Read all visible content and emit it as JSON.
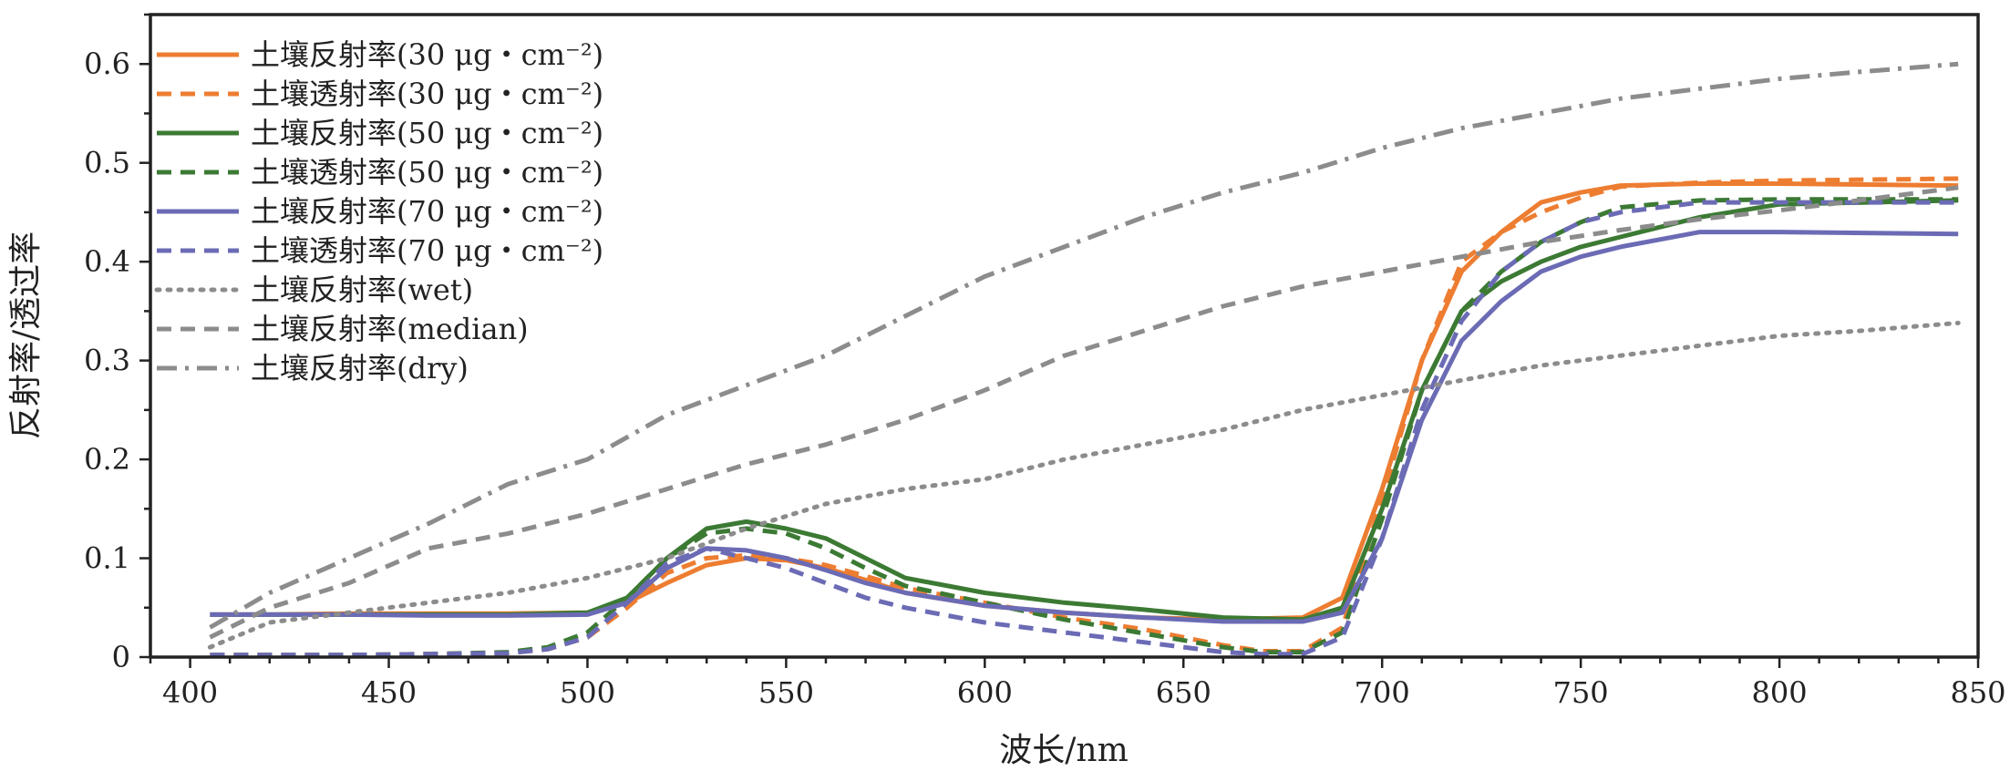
{
  "chart_data": {
    "type": "line",
    "xlabel": "波长/nm",
    "ylabel": "反射率/透过率",
    "xlim": [
      390,
      850
    ],
    "ylim": [
      0,
      0.65
    ],
    "x_ticks": [
      400,
      450,
      500,
      550,
      600,
      650,
      700,
      750,
      800,
      850
    ],
    "y_ticks": [
      0,
      0.1,
      0.2,
      0.3,
      0.4,
      0.5,
      0.6
    ],
    "x_tick_labels": [
      "400",
      "450",
      "500",
      "550",
      "600",
      "650",
      "700",
      "750",
      "800",
      "850"
    ],
    "y_tick_labels": [
      "0",
      "0.1",
      "0.2",
      "0.3",
      "0.4",
      "0.5",
      "0.6"
    ],
    "grid": false,
    "legend_position": "top-left",
    "series": [
      {
        "name": "土壤反射率(30 μg・cm⁻²)",
        "color": "#ED7D31",
        "style": "solid",
        "x": [
          405,
          420,
          440,
          460,
          480,
          500,
          510,
          520,
          530,
          540,
          550,
          560,
          570,
          580,
          600,
          620,
          640,
          660,
          680,
          690,
          700,
          710,
          720,
          730,
          740,
          750,
          760,
          780,
          800,
          845
        ],
        "y": [
          0.043,
          0.043,
          0.044,
          0.044,
          0.044,
          0.045,
          0.055,
          0.075,
          0.093,
          0.1,
          0.098,
          0.09,
          0.078,
          0.065,
          0.052,
          0.045,
          0.04,
          0.038,
          0.04,
          0.06,
          0.17,
          0.3,
          0.39,
          0.43,
          0.46,
          0.47,
          0.477,
          0.479,
          0.479,
          0.477
        ]
      },
      {
        "name": "土壤透射率(30 μg・cm⁻²)",
        "color": "#ED7D31",
        "style": "dashed",
        "x": [
          405,
          420,
          440,
          460,
          480,
          490,
          500,
          510,
          520,
          530,
          540,
          550,
          560,
          570,
          580,
          600,
          620,
          640,
          660,
          670,
          680,
          690,
          700,
          710,
          720,
          730,
          740,
          750,
          760,
          780,
          800,
          845
        ],
        "y": [
          0.002,
          0.002,
          0.002,
          0.003,
          0.004,
          0.008,
          0.02,
          0.05,
          0.085,
          0.1,
          0.103,
          0.1,
          0.093,
          0.082,
          0.07,
          0.055,
          0.04,
          0.028,
          0.012,
          0.006,
          0.006,
          0.03,
          0.16,
          0.3,
          0.4,
          0.43,
          0.45,
          0.465,
          0.476,
          0.48,
          0.482,
          0.484
        ]
      },
      {
        "name": "土壤反射率(50 μg・cm⁻²)",
        "color": "#3C7A34",
        "style": "solid",
        "x": [
          405,
          420,
          440,
          460,
          480,
          500,
          510,
          520,
          530,
          540,
          550,
          560,
          570,
          580,
          600,
          620,
          640,
          660,
          680,
          690,
          700,
          710,
          720,
          730,
          740,
          750,
          760,
          780,
          800,
          845
        ],
        "y": [
          0.043,
          0.043,
          0.043,
          0.043,
          0.043,
          0.045,
          0.06,
          0.1,
          0.13,
          0.137,
          0.13,
          0.12,
          0.1,
          0.08,
          0.065,
          0.055,
          0.048,
          0.04,
          0.038,
          0.05,
          0.15,
          0.27,
          0.35,
          0.38,
          0.4,
          0.415,
          0.425,
          0.445,
          0.458,
          0.462
        ]
      },
      {
        "name": "土壤透射率(50 μg・cm⁻²)",
        "color": "#3C7A34",
        "style": "dashed",
        "x": [
          405,
          420,
          440,
          460,
          480,
          490,
          500,
          510,
          520,
          530,
          540,
          550,
          560,
          570,
          580,
          600,
          620,
          640,
          660,
          670,
          680,
          690,
          700,
          710,
          720,
          730,
          740,
          750,
          760,
          780,
          800,
          845
        ],
        "y": [
          0.002,
          0.002,
          0.002,
          0.003,
          0.005,
          0.01,
          0.025,
          0.06,
          0.1,
          0.125,
          0.13,
          0.125,
          0.11,
          0.09,
          0.072,
          0.055,
          0.038,
          0.024,
          0.01,
          0.005,
          0.005,
          0.025,
          0.14,
          0.27,
          0.35,
          0.39,
          0.42,
          0.44,
          0.455,
          0.462,
          0.463,
          0.463
        ]
      },
      {
        "name": "土壤反射率(70 μg・cm⁻²)",
        "color": "#6B6BB5",
        "style": "solid",
        "x": [
          405,
          420,
          440,
          460,
          480,
          500,
          510,
          520,
          530,
          540,
          550,
          560,
          570,
          580,
          600,
          620,
          640,
          660,
          680,
          690,
          700,
          710,
          720,
          730,
          740,
          750,
          760,
          780,
          800,
          845
        ],
        "y": [
          0.043,
          0.043,
          0.043,
          0.042,
          0.042,
          0.043,
          0.055,
          0.09,
          0.11,
          0.108,
          0.1,
          0.088,
          0.075,
          0.065,
          0.052,
          0.045,
          0.04,
          0.036,
          0.036,
          0.045,
          0.12,
          0.24,
          0.32,
          0.36,
          0.39,
          0.405,
          0.415,
          0.43,
          0.43,
          0.428
        ]
      },
      {
        "name": "土壤透射率(70 μg・cm⁻²)",
        "color": "#6B6BB5",
        "style": "dashed",
        "x": [
          405,
          420,
          440,
          460,
          480,
          490,
          500,
          510,
          520,
          530,
          540,
          550,
          560,
          570,
          580,
          600,
          620,
          640,
          660,
          670,
          680,
          690,
          700,
          710,
          720,
          730,
          740,
          750,
          760,
          780,
          800,
          845
        ],
        "y": [
          0.002,
          0.002,
          0.002,
          0.003,
          0.004,
          0.008,
          0.02,
          0.055,
          0.095,
          0.11,
          0.1,
          0.09,
          0.075,
          0.06,
          0.05,
          0.035,
          0.025,
          0.015,
          0.005,
          0.003,
          0.003,
          0.02,
          0.12,
          0.25,
          0.34,
          0.39,
          0.42,
          0.44,
          0.45,
          0.46,
          0.46,
          0.46
        ]
      },
      {
        "name": "土壤反射率(wet)",
        "color": "#8C8C8C",
        "style": "dotted",
        "x": [
          405,
          420,
          440,
          460,
          480,
          500,
          520,
          540,
          560,
          580,
          600,
          620,
          640,
          660,
          680,
          700,
          720,
          740,
          760,
          780,
          800,
          820,
          845
        ],
        "y": [
          0.01,
          0.035,
          0.045,
          0.055,
          0.065,
          0.08,
          0.1,
          0.13,
          0.155,
          0.17,
          0.18,
          0.2,
          0.215,
          0.23,
          0.25,
          0.265,
          0.28,
          0.295,
          0.305,
          0.315,
          0.325,
          0.33,
          0.338
        ]
      },
      {
        "name": "土壤反射率(median)",
        "color": "#8C8C8C",
        "style": "dashed",
        "x": [
          405,
          420,
          440,
          460,
          480,
          500,
          520,
          540,
          560,
          580,
          600,
          620,
          640,
          660,
          680,
          700,
          720,
          740,
          760,
          780,
          800,
          820,
          845
        ],
        "y": [
          0.02,
          0.05,
          0.075,
          0.11,
          0.125,
          0.145,
          0.17,
          0.195,
          0.215,
          0.24,
          0.27,
          0.305,
          0.33,
          0.355,
          0.375,
          0.39,
          0.405,
          0.42,
          0.432,
          0.443,
          0.452,
          0.462,
          0.475
        ]
      },
      {
        "name": "土壤反射率(dry)",
        "color": "#8C8C8C",
        "style": "dashdot",
        "x": [
          405,
          420,
          440,
          460,
          480,
          500,
          520,
          540,
          560,
          580,
          600,
          620,
          640,
          660,
          680,
          700,
          720,
          740,
          760,
          780,
          800,
          820,
          845
        ],
        "y": [
          0.03,
          0.065,
          0.1,
          0.135,
          0.175,
          0.2,
          0.245,
          0.275,
          0.305,
          0.345,
          0.385,
          0.415,
          0.445,
          0.47,
          0.49,
          0.515,
          0.535,
          0.55,
          0.565,
          0.575,
          0.585,
          0.592,
          0.6
        ]
      }
    ]
  }
}
